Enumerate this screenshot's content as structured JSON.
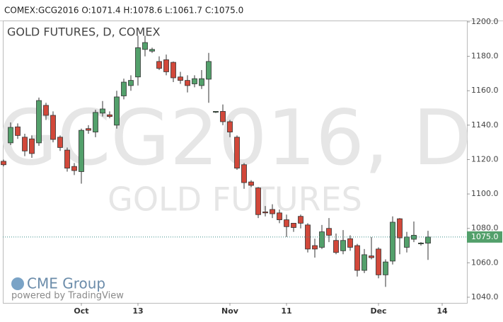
{
  "header": "COMEX:GCG2016 O:1071.4 H:1078.6 L:1061.7 C:1075.0",
  "chart_data": {
    "type": "candlestick",
    "title": "GOLD FUTURES, D, COMEX",
    "watermark": "GCG2016, D",
    "watermark_subtitle": "GOLD FUTURES",
    "logo": "CME Group",
    "credit": "powered by TradingView",
    "categories": [
      null,
      null,
      null,
      null,
      null,
      null,
      null,
      null,
      null,
      null,
      null,
      "Oct",
      null,
      null,
      null,
      null,
      null,
      null,
      null,
      "13",
      null,
      null,
      null,
      null,
      null,
      null,
      null,
      null,
      null,
      null,
      null,
      null,
      "Nov",
      null,
      null,
      null,
      null,
      null,
      null,
      null,
      "11",
      null,
      null,
      null,
      null,
      null,
      null,
      null,
      null,
      null,
      null,
      null,
      null,
      "Dec",
      null,
      null,
      null,
      null,
      null,
      null,
      null,
      null,
      "14",
      null
    ],
    "open": [
      1119,
      1129.7,
      1139,
      1133,
      1132,
      1129.7,
      1151.5,
      1145.7,
      1133,
      1125.5,
      1116,
      1113,
      1138,
      1136,
      1147,
      1146,
      1140,
      1157,
      1163,
      1168,
      1184,
      1183,
      1177,
      1178,
      1176.5,
      1168,
      1166,
      1164,
      1163,
      1166.7,
      1147.5,
      1148,
      1142,
      1133,
      1117,
      1107,
      1103.5,
      1089.6,
      1091,
      1089,
      1085,
      1083,
      1087,
      1082,
      1070,
      1069,
      1080,
      1073,
      1067,
      1074,
      1070,
      1055.6,
      1064,
      1068,
      1053,
      1061,
      1085.6,
      1069,
      1073.7,
      1071,
      1071.4,
      null,
      null,
      null
    ],
    "high": [
      1120,
      1141.6,
      1141,
      1135,
      1134,
      1156,
      1153,
      1148,
      1134,
      1127,
      1118,
      1138,
      1140,
      1149,
      1154,
      1148,
      1160,
      1167,
      1169,
      1192,
      1192,
      1185,
      1180,
      1181,
      1177,
      1171,
      1169,
      1169,
      1172,
      1182,
      1148,
      1152,
      1143,
      1134,
      1118,
      1108,
      1104,
      1093,
      1094,
      1091,
      1088,
      1083,
      1088,
      1083,
      1074,
      1082,
      1086,
      1077,
      1079,
      1076,
      1071,
      1068,
      1075,
      1069,
      1062,
      1087,
      1086,
      1078,
      1084,
      1072,
      1078.6,
      null,
      null,
      null
    ],
    "low": [
      1116,
      1128.4,
      1132,
      1122,
      1121,
      1128,
      1143,
      1130,
      1125,
      1113,
      1111,
      1106,
      1135,
      1133,
      1145,
      1144,
      1138,
      1155,
      1160,
      1163,
      1180,
      1182,
      1172,
      1169,
      1165,
      1164,
      1159,
      1162,
      1161,
      1153,
      1147,
      1140,
      1133,
      1114,
      1103,
      1104,
      1086,
      1087,
      1086,
      1083,
      1075,
      1078,
      1080,
      1066,
      1063,
      1068,
      1072,
      1065,
      1065,
      1067,
      1052,
      1054,
      1062,
      1051,
      1046,
      1059,
      1065,
      1066,
      1072,
      1070,
      1061.7,
      null,
      null,
      null
    ],
    "close": [
      1117,
      1138.7,
      1134,
      1125,
      1123.5,
      1154.3,
      1145.7,
      1131.7,
      1127,
      1115,
      1113.6,
      1137,
      1137,
      1147.4,
      1149.4,
      1145,
      1156.4,
      1165,
      1166,
      1185,
      1188,
      1184,
      1173,
      1171,
      1167.5,
      1166,
      1163,
      1167,
      1167,
      1177,
      1148,
      1142,
      1136,
      1115,
      1106.6,
      1105,
      1088,
      1089,
      1088.5,
      1085,
      1081,
      1080.5,
      1083,
      1068,
      1068,
      1078,
      1076,
      1066,
      1073,
      1069,
      1055.6,
      1064.7,
      1063,
      1053,
      1060.5,
      1083.6,
      1074.5,
      1075,
      1076,
      1071.5,
      1075,
      null,
      null,
      null
    ],
    "up_color": "#53a06b",
    "down_color": "#d2483a",
    "ylim": [
      1036.7,
      1200.8
    ],
    "yticks": [
      {
        "value": 1040,
        "label": "1040.0"
      },
      {
        "value": 1060,
        "label": "1060.0"
      },
      {
        "value": 1080,
        "label": "1080.0"
      },
      {
        "value": 1100,
        "label": "1100.0"
      },
      {
        "value": 1120,
        "label": "1120.0"
      },
      {
        "value": 1140,
        "label": "1140.0"
      },
      {
        "value": 1160,
        "label": "1160.0"
      },
      {
        "value": 1180,
        "label": "1180.0"
      },
      {
        "value": 1200,
        "label": "1200.0"
      }
    ],
    "last": {
      "value": 1075,
      "label": "1075.0"
    },
    "last_color": "#53a06b",
    "grid": false
  }
}
